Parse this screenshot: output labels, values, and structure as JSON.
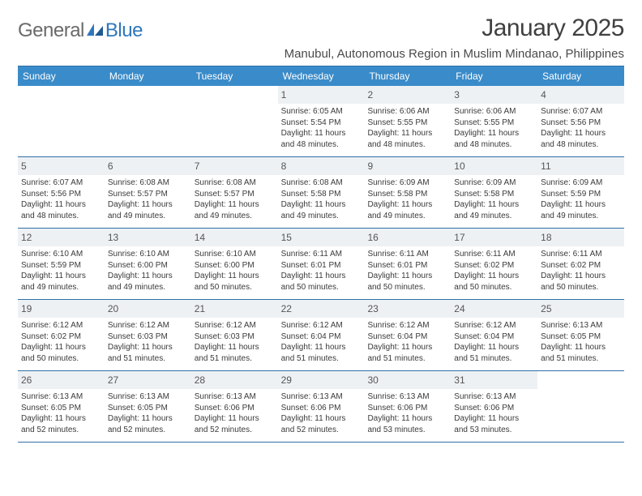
{
  "logo": {
    "general": "General",
    "blue": "Blue"
  },
  "title": "January 2025",
  "location": "Manubul, Autonomous Region in Muslim Mindanao, Philippines",
  "colors": {
    "header_bg": "#3a8bc9",
    "header_text": "#ffffff",
    "daynum_bg": "#eef1f4",
    "daynum_text": "#555555",
    "rule": "#2f6fa6",
    "body_text": "#3a3a3a",
    "title_text": "#404040",
    "logo_gray": "#6a6a6a",
    "logo_blue": "#2f77bc",
    "page_bg": "#ffffff"
  },
  "typography": {
    "title_fontsize": 30,
    "location_fontsize": 15,
    "weekday_fontsize": 12,
    "daynum_fontsize": 12,
    "body_fontsize": 10,
    "font_family": "Arial"
  },
  "weekdays": [
    "Sunday",
    "Monday",
    "Tuesday",
    "Wednesday",
    "Thursday",
    "Friday",
    "Saturday"
  ],
  "weeks": [
    [
      {
        "n": "",
        "sr": "",
        "ss": "",
        "d1": "",
        "d2": ""
      },
      {
        "n": "",
        "sr": "",
        "ss": "",
        "d1": "",
        "d2": ""
      },
      {
        "n": "",
        "sr": "",
        "ss": "",
        "d1": "",
        "d2": ""
      },
      {
        "n": "1",
        "sr": "Sunrise: 6:05 AM",
        "ss": "Sunset: 5:54 PM",
        "d1": "Daylight: 11 hours",
        "d2": "and 48 minutes."
      },
      {
        "n": "2",
        "sr": "Sunrise: 6:06 AM",
        "ss": "Sunset: 5:55 PM",
        "d1": "Daylight: 11 hours",
        "d2": "and 48 minutes."
      },
      {
        "n": "3",
        "sr": "Sunrise: 6:06 AM",
        "ss": "Sunset: 5:55 PM",
        "d1": "Daylight: 11 hours",
        "d2": "and 48 minutes."
      },
      {
        "n": "4",
        "sr": "Sunrise: 6:07 AM",
        "ss": "Sunset: 5:56 PM",
        "d1": "Daylight: 11 hours",
        "d2": "and 48 minutes."
      }
    ],
    [
      {
        "n": "5",
        "sr": "Sunrise: 6:07 AM",
        "ss": "Sunset: 5:56 PM",
        "d1": "Daylight: 11 hours",
        "d2": "and 48 minutes."
      },
      {
        "n": "6",
        "sr": "Sunrise: 6:08 AM",
        "ss": "Sunset: 5:57 PM",
        "d1": "Daylight: 11 hours",
        "d2": "and 49 minutes."
      },
      {
        "n": "7",
        "sr": "Sunrise: 6:08 AM",
        "ss": "Sunset: 5:57 PM",
        "d1": "Daylight: 11 hours",
        "d2": "and 49 minutes."
      },
      {
        "n": "8",
        "sr": "Sunrise: 6:08 AM",
        "ss": "Sunset: 5:58 PM",
        "d1": "Daylight: 11 hours",
        "d2": "and 49 minutes."
      },
      {
        "n": "9",
        "sr": "Sunrise: 6:09 AM",
        "ss": "Sunset: 5:58 PM",
        "d1": "Daylight: 11 hours",
        "d2": "and 49 minutes."
      },
      {
        "n": "10",
        "sr": "Sunrise: 6:09 AM",
        "ss": "Sunset: 5:58 PM",
        "d1": "Daylight: 11 hours",
        "d2": "and 49 minutes."
      },
      {
        "n": "11",
        "sr": "Sunrise: 6:09 AM",
        "ss": "Sunset: 5:59 PM",
        "d1": "Daylight: 11 hours",
        "d2": "and 49 minutes."
      }
    ],
    [
      {
        "n": "12",
        "sr": "Sunrise: 6:10 AM",
        "ss": "Sunset: 5:59 PM",
        "d1": "Daylight: 11 hours",
        "d2": "and 49 minutes."
      },
      {
        "n": "13",
        "sr": "Sunrise: 6:10 AM",
        "ss": "Sunset: 6:00 PM",
        "d1": "Daylight: 11 hours",
        "d2": "and 49 minutes."
      },
      {
        "n": "14",
        "sr": "Sunrise: 6:10 AM",
        "ss": "Sunset: 6:00 PM",
        "d1": "Daylight: 11 hours",
        "d2": "and 50 minutes."
      },
      {
        "n": "15",
        "sr": "Sunrise: 6:11 AM",
        "ss": "Sunset: 6:01 PM",
        "d1": "Daylight: 11 hours",
        "d2": "and 50 minutes."
      },
      {
        "n": "16",
        "sr": "Sunrise: 6:11 AM",
        "ss": "Sunset: 6:01 PM",
        "d1": "Daylight: 11 hours",
        "d2": "and 50 minutes."
      },
      {
        "n": "17",
        "sr": "Sunrise: 6:11 AM",
        "ss": "Sunset: 6:02 PM",
        "d1": "Daylight: 11 hours",
        "d2": "and 50 minutes."
      },
      {
        "n": "18",
        "sr": "Sunrise: 6:11 AM",
        "ss": "Sunset: 6:02 PM",
        "d1": "Daylight: 11 hours",
        "d2": "and 50 minutes."
      }
    ],
    [
      {
        "n": "19",
        "sr": "Sunrise: 6:12 AM",
        "ss": "Sunset: 6:02 PM",
        "d1": "Daylight: 11 hours",
        "d2": "and 50 minutes."
      },
      {
        "n": "20",
        "sr": "Sunrise: 6:12 AM",
        "ss": "Sunset: 6:03 PM",
        "d1": "Daylight: 11 hours",
        "d2": "and 51 minutes."
      },
      {
        "n": "21",
        "sr": "Sunrise: 6:12 AM",
        "ss": "Sunset: 6:03 PM",
        "d1": "Daylight: 11 hours",
        "d2": "and 51 minutes."
      },
      {
        "n": "22",
        "sr": "Sunrise: 6:12 AM",
        "ss": "Sunset: 6:04 PM",
        "d1": "Daylight: 11 hours",
        "d2": "and 51 minutes."
      },
      {
        "n": "23",
        "sr": "Sunrise: 6:12 AM",
        "ss": "Sunset: 6:04 PM",
        "d1": "Daylight: 11 hours",
        "d2": "and 51 minutes."
      },
      {
        "n": "24",
        "sr": "Sunrise: 6:12 AM",
        "ss": "Sunset: 6:04 PM",
        "d1": "Daylight: 11 hours",
        "d2": "and 51 minutes."
      },
      {
        "n": "25",
        "sr": "Sunrise: 6:13 AM",
        "ss": "Sunset: 6:05 PM",
        "d1": "Daylight: 11 hours",
        "d2": "and 51 minutes."
      }
    ],
    [
      {
        "n": "26",
        "sr": "Sunrise: 6:13 AM",
        "ss": "Sunset: 6:05 PM",
        "d1": "Daylight: 11 hours",
        "d2": "and 52 minutes."
      },
      {
        "n": "27",
        "sr": "Sunrise: 6:13 AM",
        "ss": "Sunset: 6:05 PM",
        "d1": "Daylight: 11 hours",
        "d2": "and 52 minutes."
      },
      {
        "n": "28",
        "sr": "Sunrise: 6:13 AM",
        "ss": "Sunset: 6:06 PM",
        "d1": "Daylight: 11 hours",
        "d2": "and 52 minutes."
      },
      {
        "n": "29",
        "sr": "Sunrise: 6:13 AM",
        "ss": "Sunset: 6:06 PM",
        "d1": "Daylight: 11 hours",
        "d2": "and 52 minutes."
      },
      {
        "n": "30",
        "sr": "Sunrise: 6:13 AM",
        "ss": "Sunset: 6:06 PM",
        "d1": "Daylight: 11 hours",
        "d2": "and 53 minutes."
      },
      {
        "n": "31",
        "sr": "Sunrise: 6:13 AM",
        "ss": "Sunset: 6:06 PM",
        "d1": "Daylight: 11 hours",
        "d2": "and 53 minutes."
      },
      {
        "n": "",
        "sr": "",
        "ss": "",
        "d1": "",
        "d2": ""
      }
    ]
  ]
}
